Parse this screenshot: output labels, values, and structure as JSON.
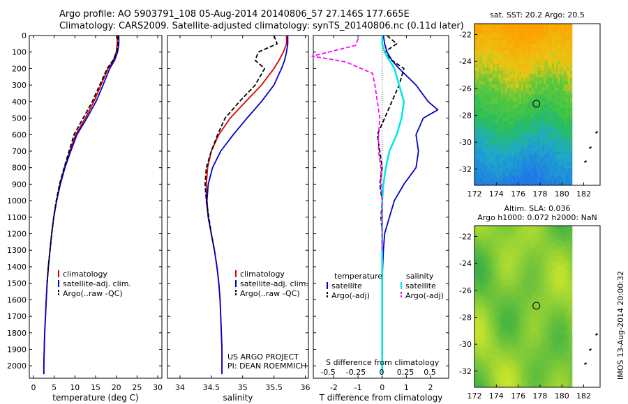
{
  "header": {
    "line1": "Argo profile: AO 5903791_108 05-Aug-2014 20140806_57 27.146S 177.665E",
    "line2": "Climatology: CARS2009. Satellite-adjusted climatology: synTS_20140806.nc (0.11d later)"
  },
  "credits": {
    "project": "US ARGO PROJECT",
    "pi": "PI: DEAN ROEMMICH",
    "imos": "IMOS 13-Aug-2014 20:00:32"
  },
  "colors": {
    "climatology": "#e00000",
    "satellite": "#0000cc",
    "argo": "#000000",
    "sat_salinity": "#00e5e5",
    "argo_salinity": "#ff00ff"
  },
  "chart_data": [
    {
      "type": "line",
      "name": "temperature-profile",
      "xlabel": "temperature (deg C)",
      "xticks": [
        0,
        5,
        10,
        15,
        20,
        25,
        30
      ],
      "xlim": [
        -1,
        31
      ],
      "ylim": [
        0,
        2075
      ],
      "yticks": [
        0,
        100,
        200,
        300,
        400,
        500,
        600,
        700,
        800,
        900,
        1000,
        1100,
        1200,
        1300,
        1400,
        1500,
        1600,
        1700,
        1800,
        1900,
        2000
      ],
      "legend": [
        "climatology",
        "satellite-adj. clim.",
        "Argo(..raw -QC)"
      ],
      "series": [
        {
          "name": "climatology",
          "color": "#e00000",
          "points": [
            [
              20.2,
              0
            ],
            [
              20.2,
              50
            ],
            [
              20,
              100
            ],
            [
              19.3,
              150
            ],
            [
              18,
              200
            ],
            [
              16.3,
              300
            ],
            [
              14.6,
              400
            ],
            [
              12.5,
              500
            ],
            [
              10.2,
              600
            ],
            [
              8.8,
              700
            ],
            [
              7.5,
              800
            ],
            [
              6.4,
              900
            ],
            [
              5.6,
              1000
            ],
            [
              4.9,
              1100
            ],
            [
              4.4,
              1200
            ],
            [
              4,
              1300
            ],
            [
              3.6,
              1400
            ],
            [
              3.3,
              1500
            ],
            [
              3.1,
              1600
            ],
            [
              2.9,
              1700
            ],
            [
              2.7,
              1800
            ],
            [
              2.6,
              1900
            ],
            [
              2.5,
              2000
            ],
            [
              2.5,
              2050
            ]
          ]
        },
        {
          "name": "satellite-adj. clim.",
          "color": "#0000cc",
          "points": [
            [
              20.6,
              0
            ],
            [
              20.6,
              50
            ],
            [
              20.3,
              100
            ],
            [
              19.6,
              150
            ],
            [
              18.4,
              200
            ],
            [
              16.8,
              300
            ],
            [
              15.1,
              400
            ],
            [
              12.9,
              500
            ],
            [
              10.5,
              600
            ],
            [
              9,
              700
            ],
            [
              7.6,
              800
            ],
            [
              6.5,
              900
            ],
            [
              5.6,
              1000
            ],
            [
              4.9,
              1100
            ],
            [
              4.4,
              1200
            ],
            [
              4,
              1300
            ],
            [
              3.6,
              1400
            ],
            [
              3.3,
              1500
            ],
            [
              3.1,
              1600
            ],
            [
              2.9,
              1700
            ],
            [
              2.7,
              1800
            ],
            [
              2.6,
              1900
            ],
            [
              2.5,
              2000
            ],
            [
              2.5,
              2050
            ]
          ]
        },
        {
          "name": "Argo(..raw -QC)",
          "color": "#000000",
          "dash": true,
          "points": [
            [
              20.4,
              0
            ],
            [
              20.4,
              50
            ],
            [
              20.1,
              100
            ],
            [
              19.2,
              150
            ],
            [
              17.8,
              200
            ],
            [
              16,
              300
            ],
            [
              14.2,
              400
            ],
            [
              12,
              500
            ],
            [
              9.8,
              600
            ],
            [
              8.6,
              700
            ],
            [
              7.4,
              800
            ],
            [
              6.3,
              900
            ],
            [
              5.5,
              1000
            ],
            [
              4.9,
              1100
            ],
            [
              4.4,
              1200
            ],
            [
              4,
              1300
            ],
            [
              3.6,
              1400
            ],
            [
              3.3,
              1500
            ]
          ]
        }
      ]
    },
    {
      "type": "line",
      "name": "salinity-profile",
      "xlabel": "salinity",
      "xticks": [
        34,
        34.5,
        35,
        35.5,
        36
      ],
      "xlim": [
        33.8,
        36.05
      ],
      "ylim": [
        0,
        2075
      ],
      "legend": [
        "climatology",
        "satellite-adj. clim.",
        "Argo(..raw -QC)"
      ],
      "series": [
        {
          "name": "climatology",
          "color": "#e00000",
          "points": [
            [
              35.7,
              0
            ],
            [
              35.7,
              50
            ],
            [
              35.65,
              100
            ],
            [
              35.58,
              150
            ],
            [
              35.5,
              200
            ],
            [
              35.3,
              300
            ],
            [
              35.05,
              400
            ],
            [
              34.8,
              500
            ],
            [
              34.62,
              600
            ],
            [
              34.5,
              700
            ],
            [
              34.44,
              800
            ],
            [
              34.42,
              900
            ],
            [
              34.42,
              1000
            ],
            [
              34.45,
              1100
            ],
            [
              34.5,
              1200
            ],
            [
              34.55,
              1300
            ],
            [
              34.59,
              1400
            ],
            [
              34.62,
              1500
            ],
            [
              34.64,
              1600
            ],
            [
              34.65,
              1700
            ],
            [
              34.66,
              1800
            ],
            [
              34.67,
              1900
            ],
            [
              34.67,
              2000
            ],
            [
              34.67,
              2050
            ]
          ]
        },
        {
          "name": "satellite-adj. clim.",
          "color": "#0000cc",
          "points": [
            [
              35.72,
              0
            ],
            [
              35.72,
              50
            ],
            [
              35.7,
              100
            ],
            [
              35.67,
              150
            ],
            [
              35.62,
              200
            ],
            [
              35.5,
              300
            ],
            [
              35.3,
              400
            ],
            [
              35.07,
              500
            ],
            [
              34.85,
              600
            ],
            [
              34.65,
              700
            ],
            [
              34.52,
              800
            ],
            [
              34.45,
              900
            ],
            [
              34.43,
              1000
            ],
            [
              34.45,
              1100
            ],
            [
              34.5,
              1200
            ],
            [
              34.55,
              1300
            ],
            [
              34.59,
              1400
            ],
            [
              34.62,
              1500
            ],
            [
              34.64,
              1600
            ],
            [
              34.65,
              1700
            ],
            [
              34.66,
              1800
            ],
            [
              34.67,
              1900
            ],
            [
              34.67,
              2000
            ],
            [
              34.67,
              2050
            ]
          ]
        },
        {
          "name": "Argo(..raw -QC)",
          "color": "#000000",
          "dash": true,
          "points": [
            [
              35.5,
              0
            ],
            [
              35.55,
              50
            ],
            [
              35.25,
              100
            ],
            [
              35.2,
              150
            ],
            [
              35.35,
              200
            ],
            [
              35.2,
              300
            ],
            [
              34.95,
              400
            ],
            [
              34.72,
              500
            ],
            [
              34.6,
              600
            ],
            [
              34.5,
              700
            ],
            [
              34.42,
              800
            ],
            [
              34.4,
              900
            ],
            [
              34.42,
              1000
            ],
            [
              34.46,
              1100
            ],
            [
              34.5,
              1200
            ],
            [
              34.55,
              1300
            ]
          ]
        }
      ]
    },
    {
      "type": "line",
      "name": "difference-profile",
      "top_xlabel": "S difference from climatology",
      "top_xticks": [
        "-0.5",
        "-0.25",
        "0",
        "0.25",
        "0.5"
      ],
      "xlabel": "T difference from climatology",
      "xticks": [
        -2,
        -1,
        0,
        1,
        2
      ],
      "xlim": [
        -2.85,
        2.75
      ],
      "ylim": [
        0,
        2075
      ],
      "legend_headers": [
        "temperature",
        "salinity"
      ],
      "legend": [
        "satellite",
        "Argo(-adj)",
        "satellite",
        "Argo(-adj)"
      ],
      "series": [
        {
          "name": "temperature satellite",
          "color": "#0000cc",
          "points": [
            [
              0.05,
              0
            ],
            [
              0.1,
              50
            ],
            [
              0.2,
              100
            ],
            [
              0.4,
              150
            ],
            [
              0.7,
              200
            ],
            [
              1.4,
              300
            ],
            [
              1.9,
              400
            ],
            [
              2.3,
              450
            ],
            [
              1.7,
              500
            ],
            [
              1.4,
              600
            ],
            [
              1.5,
              700
            ],
            [
              1.4,
              800
            ],
            [
              0.9,
              900
            ],
            [
              0.5,
              1000
            ],
            [
              0.3,
              1100
            ],
            [
              0.1,
              1200
            ],
            [
              0.05,
              1300
            ],
            [
              0.02,
              1400
            ],
            [
              0,
              1500
            ],
            [
              0,
              2050
            ]
          ]
        },
        {
          "name": "temperature Argo(-adj)",
          "color": "#000000",
          "dash": true,
          "points": [
            [
              0.2,
              0
            ],
            [
              0.6,
              50
            ],
            [
              0.1,
              100
            ],
            [
              0.4,
              150
            ],
            [
              0.9,
              200
            ],
            [
              0.7,
              300
            ],
            [
              0.4,
              400
            ],
            [
              0.1,
              500
            ],
            [
              -0.2,
              600
            ],
            [
              -0.1,
              700
            ],
            [
              0,
              800
            ],
            [
              -0.1,
              900
            ],
            [
              0,
              1000
            ],
            [
              -0.05,
              1100
            ],
            [
              0,
              1200
            ],
            [
              0,
              1300
            ],
            [
              0,
              1400
            ],
            [
              0,
              1500
            ]
          ]
        },
        {
          "name": "salinity satellite",
          "color": "#00e5e5",
          "points": [
            [
              0,
              0
            ],
            [
              0,
              50
            ],
            [
              0.1,
              100
            ],
            [
              0.3,
              150
            ],
            [
              0.5,
              200
            ],
            [
              0.7,
              300
            ],
            [
              0.9,
              400
            ],
            [
              0.8,
              500
            ],
            [
              0.6,
              600
            ],
            [
              0.3,
              700
            ],
            [
              0.15,
              800
            ],
            [
              0.05,
              900
            ],
            [
              0,
              1000
            ],
            [
              0,
              1100
            ],
            [
              0,
              1200
            ],
            [
              0,
              2050
            ]
          ]
        },
        {
          "name": "salinity Argo(-adj)",
          "color": "#ff00ff",
          "dash": true,
          "points": [
            [
              -1,
              20
            ],
            [
              -1.1,
              60
            ],
            [
              -2.9,
              125
            ],
            [
              -1.5,
              160
            ],
            [
              -0.4,
              230
            ],
            [
              -0.3,
              300
            ],
            [
              -0.2,
              400
            ],
            [
              -0.1,
              500
            ],
            [
              -0.15,
              600
            ],
            [
              -0.15,
              700
            ],
            [
              -0.05,
              800
            ],
            [
              -0.05,
              900
            ],
            [
              0,
              1000
            ],
            [
              0,
              1100
            ],
            [
              0,
              1200
            ],
            [
              0,
              1300
            ]
          ]
        }
      ]
    },
    {
      "type": "heatmap",
      "name": "sst-map",
      "title": "sat. SST: 20.2  Argo: 20.5",
      "xticks": [
        172,
        174,
        176,
        178,
        180,
        182
      ],
      "yticks": [
        -22,
        -24,
        -26,
        -28,
        -30,
        -32
      ],
      "xlim": [
        172,
        183.5
      ],
      "ylim": [
        -33.2,
        -21.2
      ],
      "argo_position": [
        177.665,
        -27.146
      ]
    },
    {
      "type": "heatmap",
      "name": "sla-map",
      "title_line1": "Altim. SLA: 0.036",
      "title_line2": "Argo h1000: 0.072 h2000: NaN",
      "xticks": [
        172,
        174,
        176,
        178,
        180,
        182
      ],
      "yticks": [
        -22,
        -24,
        -26,
        -28,
        -30,
        -32
      ],
      "xlim": [
        172,
        183.5
      ],
      "ylim": [
        -33.2,
        -21.2
      ],
      "argo_position": [
        177.665,
        -27.146
      ]
    }
  ]
}
